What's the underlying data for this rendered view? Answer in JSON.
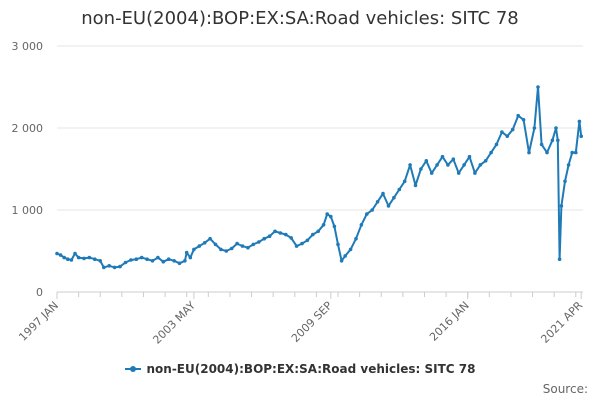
{
  "chart_data": {
    "type": "line",
    "title": "non-EU(2004):BOP:EX:SA:Road vehicles: SITC 78",
    "xlabel": "",
    "ylabel": "",
    "ylim": [
      0,
      3000
    ],
    "y_ticks": [
      {
        "value": 0,
        "label": "0"
      },
      {
        "value": 1000,
        "label": "1 000"
      },
      {
        "value": 2000,
        "label": "2 000"
      },
      {
        "value": 3000,
        "label": "3 000"
      }
    ],
    "x_range": [
      "1997-01",
      "2021-05"
    ],
    "x_ticks": [
      {
        "date": "1997-01",
        "label": "1997 JAN"
      },
      {
        "date": "2003-05",
        "label": "2003 MAY"
      },
      {
        "date": "2009-09",
        "label": "2009 SEP"
      },
      {
        "date": "2016-01",
        "label": "2016 JAN"
      },
      {
        "date": "2021-04",
        "label": "2021 APR"
      }
    ],
    "grid": true,
    "legend_position": "bottom",
    "color": "#1f7ab8",
    "series": [
      {
        "name": "non-EU(2004):BOP:EX:SA:Road vehicles: SITC 78",
        "points": [
          [
            "1997-01",
            470
          ],
          [
            "1997-03",
            450
          ],
          [
            "1997-05",
            420
          ],
          [
            "1997-07",
            400
          ],
          [
            "1997-09",
            390
          ],
          [
            "1997-11",
            470
          ],
          [
            "1998-01",
            420
          ],
          [
            "1998-04",
            410
          ],
          [
            "1998-07",
            420
          ],
          [
            "1998-10",
            400
          ],
          [
            "1999-01",
            380
          ],
          [
            "1999-03",
            300
          ],
          [
            "1999-06",
            320
          ],
          [
            "1999-09",
            300
          ],
          [
            "1999-12",
            310
          ],
          [
            "2000-03",
            360
          ],
          [
            "2000-06",
            390
          ],
          [
            "2000-09",
            400
          ],
          [
            "2000-12",
            420
          ],
          [
            "2001-03",
            400
          ],
          [
            "2001-06",
            380
          ],
          [
            "2001-09",
            420
          ],
          [
            "2001-12",
            370
          ],
          [
            "2002-03",
            400
          ],
          [
            "2002-06",
            380
          ],
          [
            "2002-09",
            350
          ],
          [
            "2002-12",
            380
          ],
          [
            "2003-01",
            480
          ],
          [
            "2003-03",
            420
          ],
          [
            "2003-05",
            520
          ],
          [
            "2003-08",
            560
          ],
          [
            "2003-11",
            600
          ],
          [
            "2004-02",
            650
          ],
          [
            "2004-05",
            580
          ],
          [
            "2004-08",
            520
          ],
          [
            "2004-11",
            500
          ],
          [
            "2005-02",
            530
          ],
          [
            "2005-05",
            590
          ],
          [
            "2005-08",
            560
          ],
          [
            "2005-11",
            540
          ],
          [
            "2006-02",
            580
          ],
          [
            "2006-05",
            610
          ],
          [
            "2006-08",
            650
          ],
          [
            "2006-11",
            680
          ],
          [
            "2007-02",
            740
          ],
          [
            "2007-05",
            720
          ],
          [
            "2007-08",
            700
          ],
          [
            "2007-11",
            660
          ],
          [
            "2008-02",
            560
          ],
          [
            "2008-05",
            590
          ],
          [
            "2008-08",
            630
          ],
          [
            "2008-11",
            700
          ],
          [
            "2009-02",
            740
          ],
          [
            "2009-05",
            820
          ],
          [
            "2009-07",
            950
          ],
          [
            "2009-09",
            920
          ],
          [
            "2009-11",
            800
          ],
          [
            "2010-01",
            580
          ],
          [
            "2010-03",
            380
          ],
          [
            "2010-05",
            440
          ],
          [
            "2010-08",
            520
          ],
          [
            "2010-11",
            650
          ],
          [
            "2011-02",
            820
          ],
          [
            "2011-05",
            950
          ],
          [
            "2011-08",
            1000
          ],
          [
            "2011-11",
            1100
          ],
          [
            "2012-02",
            1200
          ],
          [
            "2012-05",
            1050
          ],
          [
            "2012-08",
            1150
          ],
          [
            "2012-11",
            1250
          ],
          [
            "2013-02",
            1350
          ],
          [
            "2013-05",
            1550
          ],
          [
            "2013-08",
            1300
          ],
          [
            "2013-11",
            1500
          ],
          [
            "2014-02",
            1600
          ],
          [
            "2014-05",
            1450
          ],
          [
            "2014-08",
            1550
          ],
          [
            "2014-11",
            1650
          ],
          [
            "2015-02",
            1550
          ],
          [
            "2015-05",
            1620
          ],
          [
            "2015-08",
            1450
          ],
          [
            "2015-11",
            1550
          ],
          [
            "2016-02",
            1650
          ],
          [
            "2016-05",
            1450
          ],
          [
            "2016-08",
            1550
          ],
          [
            "2016-11",
            1600
          ],
          [
            "2017-02",
            1700
          ],
          [
            "2017-05",
            1800
          ],
          [
            "2017-08",
            1950
          ],
          [
            "2017-11",
            1900
          ],
          [
            "2018-02",
            1980
          ],
          [
            "2018-05",
            2150
          ],
          [
            "2018-08",
            2100
          ],
          [
            "2018-11",
            1700
          ],
          [
            "2019-02",
            2000
          ],
          [
            "2019-04",
            2500
          ],
          [
            "2019-06",
            1800
          ],
          [
            "2019-09",
            1700
          ],
          [
            "2019-12",
            1850
          ],
          [
            "2020-02",
            2000
          ],
          [
            "2020-03",
            1850
          ],
          [
            "2020-04",
            400
          ],
          [
            "2020-05",
            1050
          ],
          [
            "2020-07",
            1350
          ],
          [
            "2020-09",
            1550
          ],
          [
            "2020-11",
            1700
          ],
          [
            "2021-01",
            1700
          ],
          [
            "2021-03",
            2080
          ],
          [
            "2021-04",
            1900
          ]
        ]
      }
    ]
  },
  "legend": {
    "label": "non-EU(2004):BOP:EX:SA:Road vehicles: SITC 78"
  },
  "source_label": "Source:"
}
